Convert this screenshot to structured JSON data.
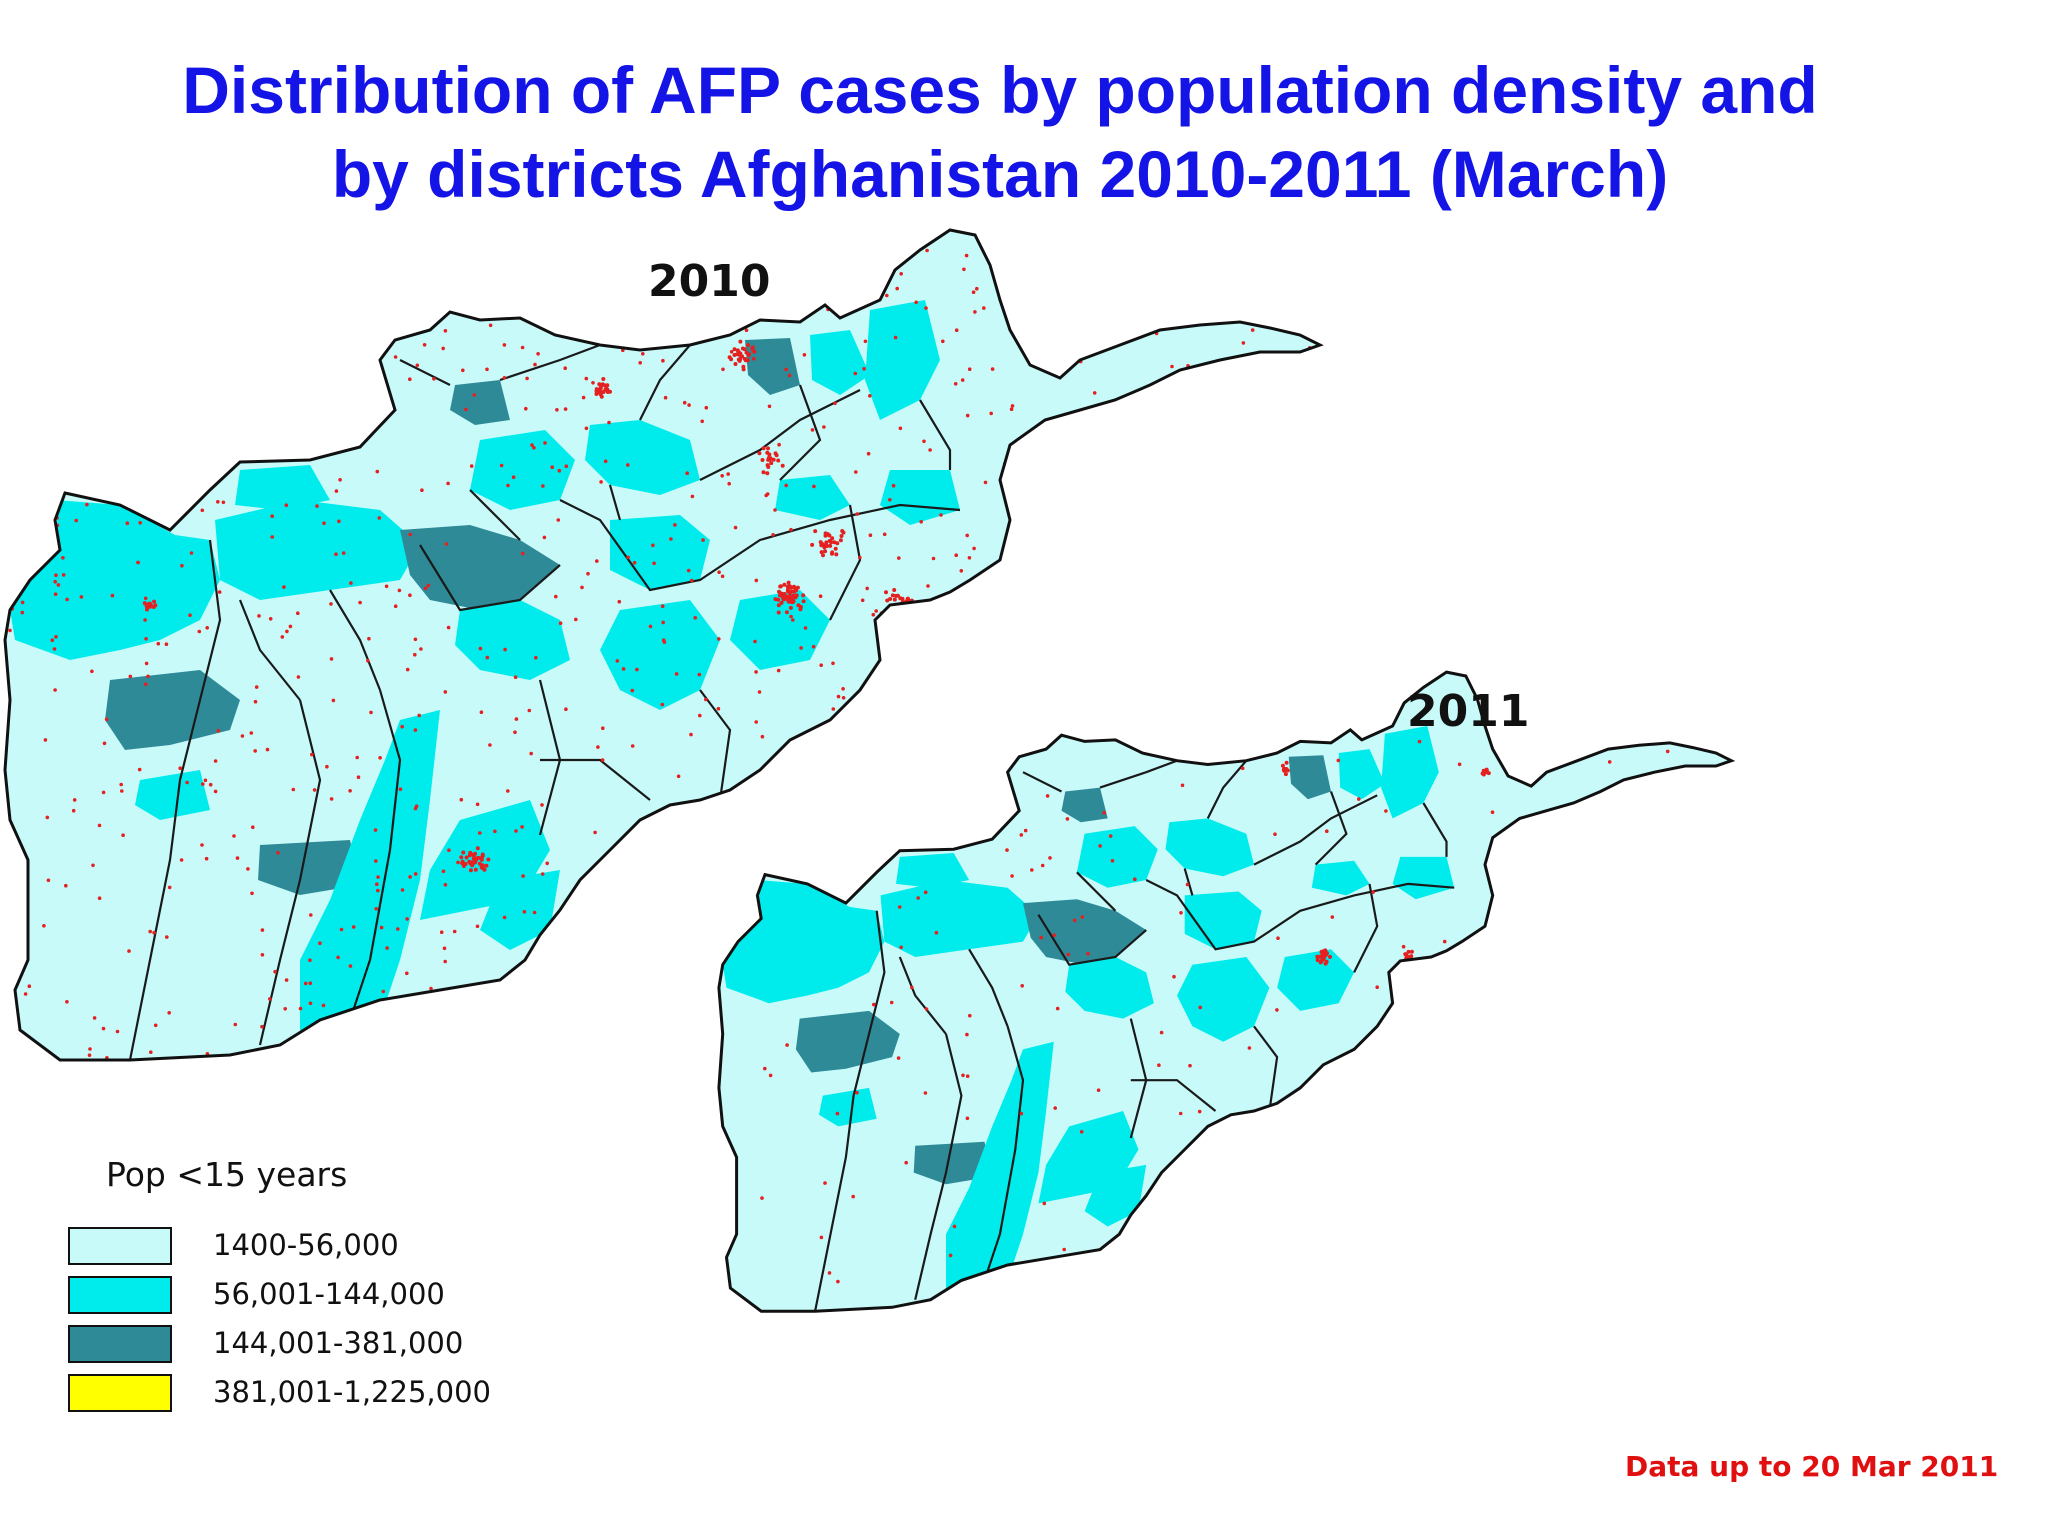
{
  "title_line1": "Distribution of AFP cases by population density and",
  "title_line2": "by districts Afghanistan 2010-2011 (March)",
  "maps": [
    {
      "label": "2010"
    },
    {
      "label": "2011"
    }
  ],
  "legend": {
    "title": "Pop <15 years",
    "items": [
      {
        "label": "1400-56,000",
        "color": "#c8fafa"
      },
      {
        "label": "56,001-144,000",
        "color": "#00ecec"
      },
      {
        "label": "144,001-381,000",
        "color": "#2f8a98"
      },
      {
        "label": "381,001-1,225,000",
        "color": "#ffff00"
      }
    ]
  },
  "case_marker_color": "#e52020",
  "footnote": "Data up to 20 Mar 2011"
}
